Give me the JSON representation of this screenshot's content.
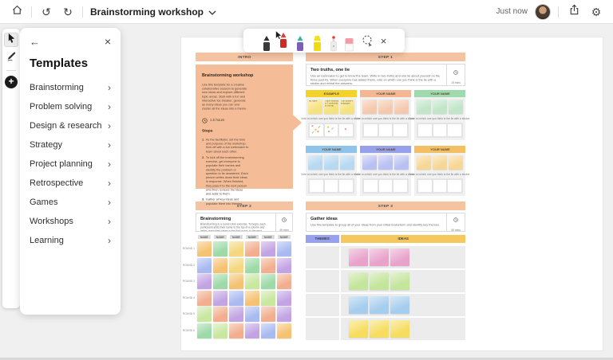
{
  "topbar": {
    "title": "Brainstorming workshop",
    "saved_status": "Just now"
  },
  "templates_panel": {
    "title": "Templates",
    "items": [
      "Brainstorming",
      "Problem solving",
      "Design & research",
      "Strategy",
      "Project planning",
      "Retrospective",
      "Games",
      "Workshops",
      "Learning"
    ]
  },
  "ink_toolbar": {
    "tools": [
      {
        "name": "black-pen",
        "type": "pen",
        "tip": "#2e2e2e",
        "body": "#3a3a3a",
        "selected": false
      },
      {
        "name": "red-pen",
        "type": "pen",
        "tip": "#e03b2f",
        "body": "#c82f24",
        "selected": true
      },
      {
        "name": "galaxy-pen",
        "type": "pen",
        "tip": "#2fb7a3",
        "body": "#7a5fb5",
        "selected": false
      },
      {
        "name": "yellow-highlighter",
        "type": "highlighter"
      },
      {
        "name": "laser-pointer",
        "type": "laser"
      },
      {
        "name": "eraser",
        "type": "eraser"
      },
      {
        "name": "lasso-select",
        "type": "lasso"
      },
      {
        "name": "close-ink-toolbar",
        "type": "close",
        "glyph": "×"
      }
    ]
  },
  "board": {
    "intro": {
      "header": "INTRO",
      "title": "Brainstorming workshop",
      "description": "Use this template for a creative collaborative session to generate new ideas and explore different topic areas. Start with a fun and interactive ice breaker, generate as many ideas you can and cluster all the ideas into a theme.",
      "duration": "1.5 hours",
      "steps_label": "Steps",
      "steps": [
        "As the facilitator, set the tone and purpose of the workshop. Kick off with a fun icebreaker to learn about each other.",
        "To kick off the brainstorming exercise, get everyone to populate their names and identify the problem or question to be answered. Each person writes down their ideas in response. When finished, they pass it to the next person who then reviews the ideas and adds to them.",
        "Gather all key ideas and populate them into themes."
      ]
    },
    "step1": {
      "header": "STEP 1",
      "activity_title": "Two truths, one lie",
      "activity_description": "Use an icebreaker to get to know the team. Write in two truths and one lie about yourself on the three post-its. When everyone has added theirs, vote on which one you think is the lie with a sticker and reveal the answers.",
      "duration": "15 mins",
      "column_caption": "Vote on which one you think is the lie with a sticker",
      "columns": [
        {
          "label": "EXAMPLE",
          "header_color": "#F2D22B",
          "sticky_color": "#F6E27F",
          "example": true
        },
        {
          "label": "YOUR NAME",
          "header_color": "#F3B793",
          "sticky_color": "#F5C9AE",
          "example": false
        },
        {
          "label": "YOUR NAME",
          "header_color": "#9FD9AE",
          "sticky_color": "#C0E5C8",
          "example": false
        },
        {
          "label": "YOUR NAME",
          "header_color": "#8FC3EA",
          "sticky_color": "#B6D8F1",
          "example": false
        },
        {
          "label": "YOUR NAME",
          "header_color": "#97A0EA",
          "sticky_color": "#B9C0F3",
          "example": false
        },
        {
          "label": "YOUR NAME",
          "header_color": "#F4BF62",
          "sticky_color": "#F7D795",
          "example": false
        }
      ],
      "example_notes": [
        "My name",
        "I have travelled to 3 continents in one trip",
        "I can speak 4 languages"
      ],
      "example_stickers": [
        [
          [
            "x",
            2,
            1
          ],
          [
            "check",
            10,
            2
          ],
          [
            "dot",
            6,
            5
          ],
          [
            "check",
            2,
            9
          ],
          [
            "x",
            9,
            8
          ]
        ],
        [
          [
            "dot",
            3,
            2
          ],
          [
            "check",
            8,
            4
          ],
          [
            "x",
            4,
            8
          ]
        ],
        [
          [
            "x",
            6,
            5
          ]
        ]
      ]
    },
    "step2": {
      "header": "STEP 2",
      "activity_title": "Brainstorming",
      "activity_description": "Brainstorming is a round robin exercise. To begin, each participant adds their name to the top of a column and writes down their ideas in the first round. In the next rounds, move one column to the right, review the ideas already there and add new ideas to them.",
      "duration": "45 mins",
      "column_header": "NAME",
      "row_labels": [
        "ROUND 1",
        "ROUND 2",
        "ROUND 3",
        "ROUND 4",
        "ROUND 5",
        "ROUND 6"
      ],
      "palette": {
        "orange": "#F5C272",
        "yellow": "#F4D77E",
        "salmon": "#F2AE8E",
        "green": "#9ED9A8",
        "lightgreen": "#C8E79F",
        "blue": "#A9BAF1",
        "purple": "#C2A4E3"
      },
      "grid": [
        [
          "orange",
          "green",
          "yellow",
          "salmon",
          "purple",
          "blue"
        ],
        [
          "blue",
          "orange",
          "yellow",
          "green",
          "salmon",
          "purple"
        ],
        [
          "purple",
          "green",
          "orange",
          "lightgreen",
          "green",
          "salmon"
        ],
        [
          "salmon",
          "purple",
          "blue",
          "orange",
          "lightgreen",
          "purple"
        ],
        [
          "lightgreen",
          "salmon",
          "purple",
          "blue",
          "salmon",
          "purple"
        ],
        [
          "green",
          "lightgreen",
          "salmon",
          "purple",
          "blue",
          "orange"
        ]
      ]
    },
    "step3": {
      "header": "STEP 3",
      "activity_title": "Gather ideas",
      "activity_description": "Use this template to group all of your ideas from your initial brainstorm and identify key themes.",
      "duration": "30 mins",
      "themes_label": "THEMES",
      "ideas_label": "IDEAS",
      "themes_color": "#97A1F0",
      "ideas_color": "#F6C75F",
      "rows": [
        {
          "sticky_color": "#E9A3CB"
        },
        {
          "sticky_color": "#C4E59C"
        },
        {
          "sticky_color": "#A6CDEE"
        },
        {
          "sticky_color": "#F6DD60"
        }
      ],
      "stickies_per_row": 3
    }
  },
  "colors": {
    "section_header": "#F5C3A0",
    "intro_card": "#F5BD97",
    "page_bg": "#f0f0f0",
    "canvas_bg": "#ffffff"
  }
}
